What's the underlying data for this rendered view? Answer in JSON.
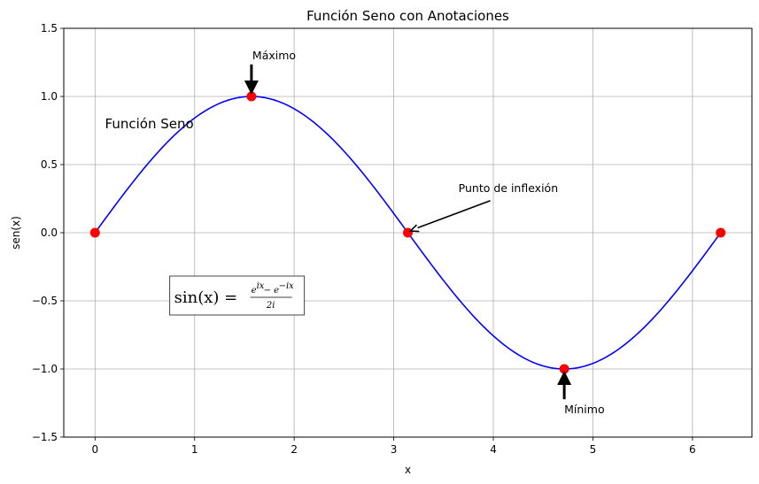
{
  "chart_data": {
    "type": "line",
    "title": "Función Seno con Anotaciones",
    "xlabel": "x",
    "ylabel": "sen(x)",
    "xlim": [
      -0.314,
      6.597
    ],
    "ylim": [
      -1.5,
      1.5
    ],
    "xticks": [
      0,
      1,
      2,
      3,
      4,
      5,
      6
    ],
    "yticks": [
      -1.5,
      -1.0,
      -0.5,
      0.0,
      0.5,
      1.0,
      1.5
    ],
    "xtick_labels": [
      "0",
      "1",
      "2",
      "3",
      "4",
      "5",
      "6"
    ],
    "ytick_labels": [
      "−1.5",
      "−1.0",
      "−0.5",
      "0.0",
      "0.5",
      "1.0",
      "1.5"
    ],
    "grid": true,
    "series": [
      {
        "function": "sin(x)",
        "x_range": [
          0,
          6.2832
        ],
        "color": "#0000ff"
      }
    ],
    "points": [
      {
        "x": 0,
        "y": 0
      },
      {
        "x": 1.5708,
        "y": 1
      },
      {
        "x": 3.1416,
        "y": 0
      },
      {
        "x": 4.7124,
        "y": -1
      },
      {
        "x": 6.2832,
        "y": 0
      }
    ],
    "point_color": "#ff0000",
    "annotations": {
      "max": {
        "text": "Máximo",
        "x": 1.5708,
        "y": 1,
        "text_x": 1.5708,
        "text_y": 1.3
      },
      "min": {
        "text": "Mínimo",
        "x": 4.7124,
        "y": -1,
        "text_x": 4.7124,
        "text_y": -1.3
      },
      "inflexion": {
        "text": "Punto de inflexión",
        "x": 3.1416,
        "y": 0,
        "text_x": 3.65,
        "text_y": 0.3
      },
      "label": {
        "text": "Función Seno",
        "x": 0.1,
        "y": 0.8
      },
      "formula": {
        "lhs": "sin(x) =",
        "numerator": "e",
        "numerator_exp1": "ix",
        "numerator_minus": " − e",
        "numerator_exp2": "−ix",
        "denominator": "2i",
        "x": 0.75,
        "y": -0.5
      }
    }
  }
}
